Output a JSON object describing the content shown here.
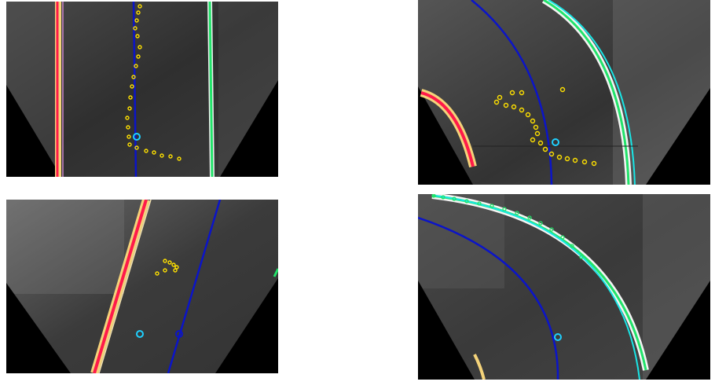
{
  "figure": {
    "panels": [
      {
        "name": "straight-lane-view"
      },
      {
        "name": "right-curve-view"
      },
      {
        "name": "slanted-lane-view"
      },
      {
        "name": "left-curve-view"
      }
    ]
  },
  "colors": {
    "background": "#ffffff",
    "floor": "#3a3a3a",
    "mask": "#000000",
    "left_boundary": "#ff1a4a",
    "left_boundary_glow": "#f4d37a",
    "right_boundary": "#22e36a",
    "right_boundary_alt": "#19e6e6",
    "center_path": "#0b14c8",
    "detected_points": "#ffe100",
    "target_point": "#1fd0ff"
  },
  "icons": [
    "target-point-icon",
    "detected-point-icon"
  ]
}
